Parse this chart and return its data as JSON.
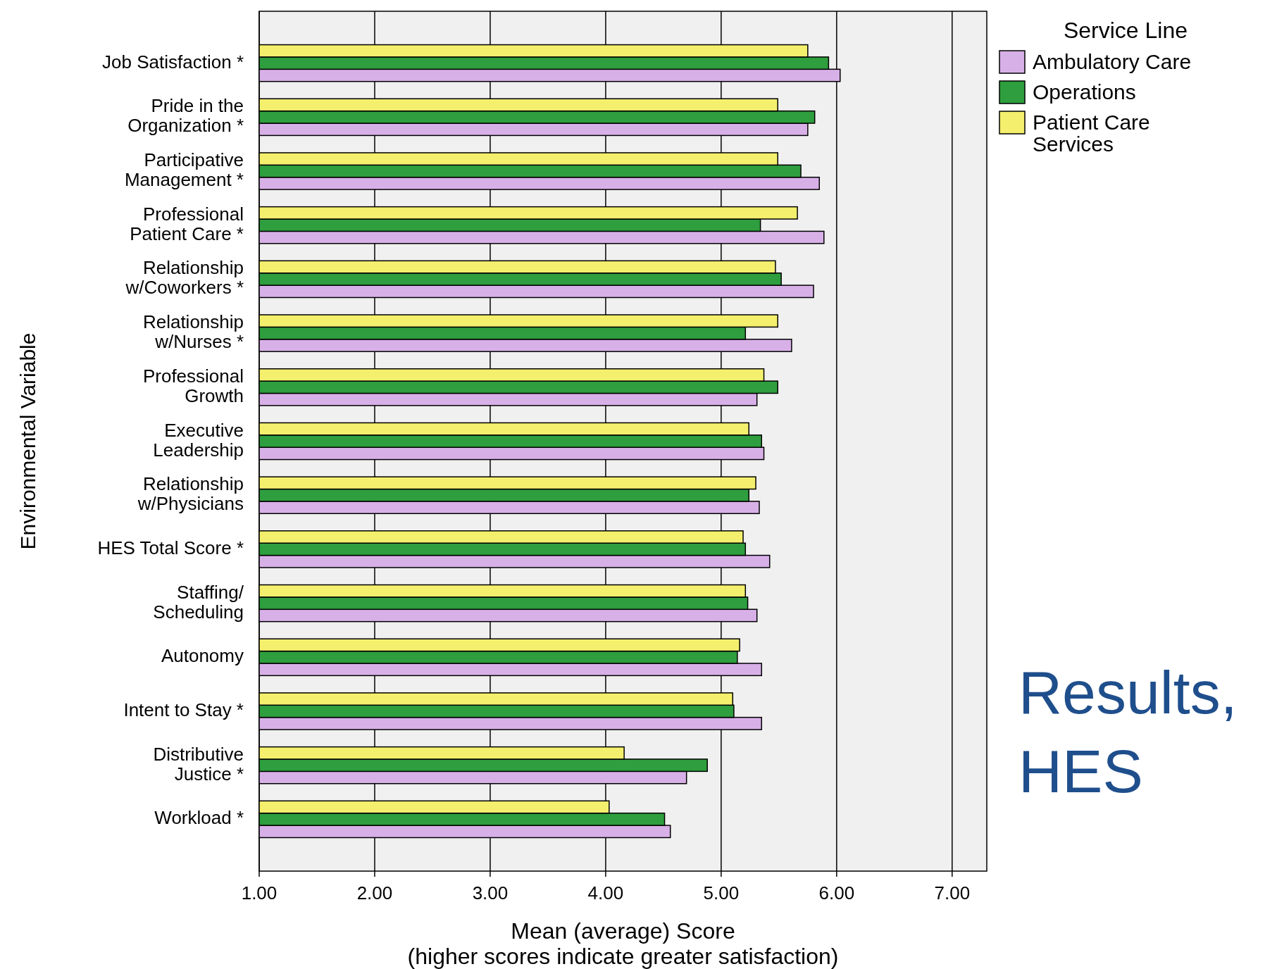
{
  "chart_data": {
    "type": "bar",
    "orientation": "horizontal",
    "title": "Results, HES",
    "xlabel": "Mean (average) Score\n(higher scores indicate greater satisfaction)",
    "ylabel": "Environmental Variable",
    "legend_title": "Service Line",
    "legend": "top right",
    "grid": "x",
    "categories": [
      "Job Satisfaction *",
      "Pride in the\nOrganization *",
      "Participative\nManagement *",
      "Professional\nPatient Care *",
      "Relationship\nw/Coworkers *",
      "Relationship\nw/Nurses *",
      "Professional\nGrowth",
      "Executive\nLeadership",
      "Relationship\nw/Physicians",
      "HES Total Score *",
      "Staffing/\nScheduling",
      "Autonomy",
      "Intent to Stay *",
      "Distributive\nJustice *",
      "Workload *"
    ],
    "xlim": [
      1,
      7.3
    ],
    "xticks": [
      {
        "value": 1,
        "label": "1.00"
      },
      {
        "value": 2,
        "label": "2.00"
      },
      {
        "value": 3,
        "label": "3.00"
      },
      {
        "value": 4,
        "label": "4.00"
      },
      {
        "value": 5,
        "label": "5.00"
      },
      {
        "value": 6,
        "label": "6.00"
      },
      {
        "value": 7,
        "label": "7.00"
      }
    ],
    "series": [
      {
        "name": "Ambulatory Care",
        "color": "#d8b0e8",
        "values": [
          6.03,
          5.75,
          5.85,
          5.89,
          5.8,
          5.61,
          5.31,
          5.37,
          5.33,
          5.42,
          5.31,
          5.35,
          5.35,
          4.7,
          4.56
        ]
      },
      {
        "name": "Operations",
        "color": "#2e9e3e",
        "values": [
          5.93,
          5.81,
          5.69,
          5.34,
          5.52,
          5.21,
          5.49,
          5.35,
          5.24,
          5.21,
          5.23,
          5.14,
          5.11,
          4.88,
          4.51
        ]
      },
      {
        "name": "Patient Care Services",
        "color": "#f4f06e",
        "values": [
          5.75,
          5.49,
          5.49,
          5.66,
          5.47,
          5.49,
          5.37,
          5.24,
          5.3,
          5.19,
          5.21,
          5.16,
          5.1,
          4.16,
          4.03
        ]
      }
    ]
  }
}
